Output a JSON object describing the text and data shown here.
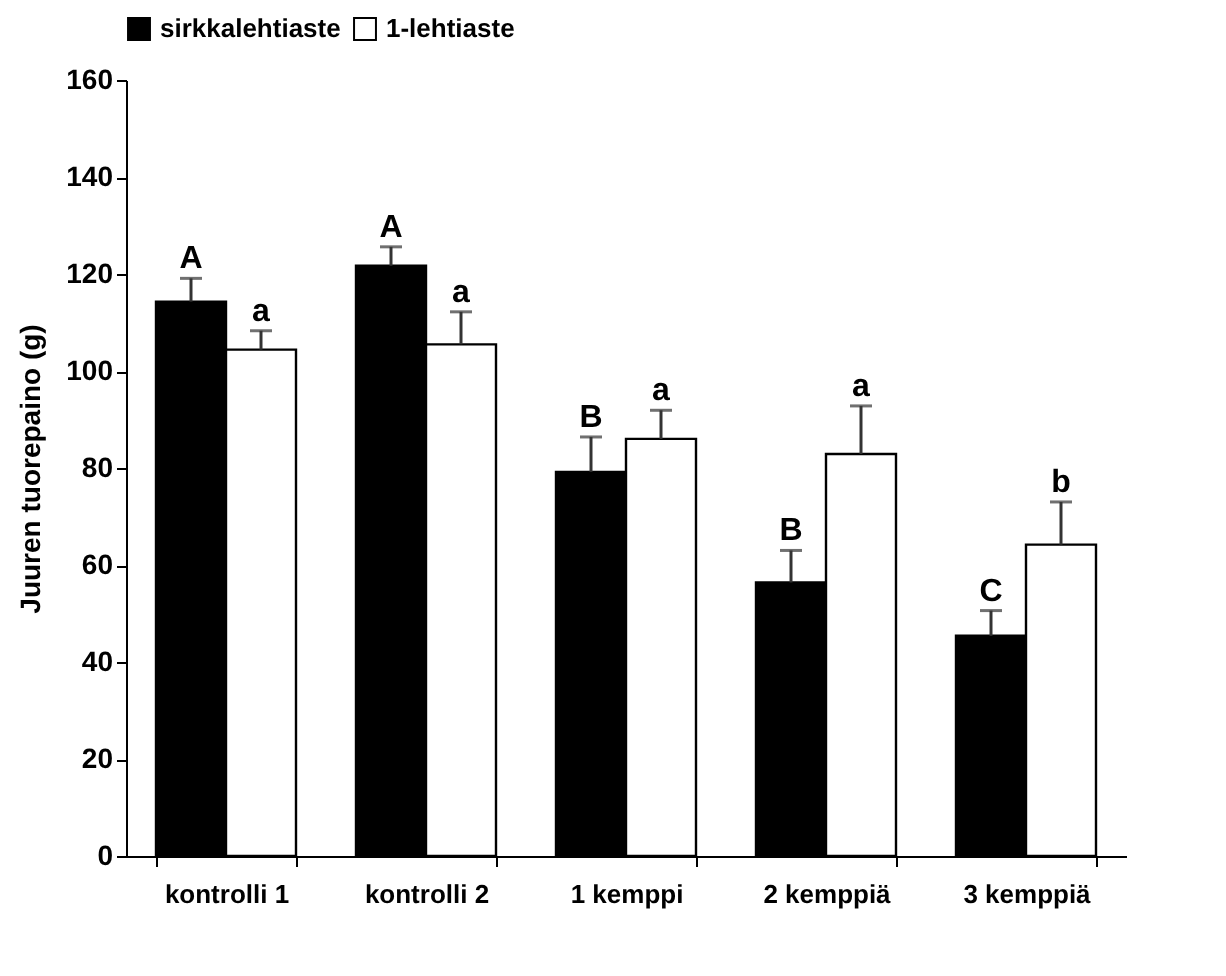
{
  "chart_data": {
    "type": "bar",
    "ylabel": "Juuren tuorepaino (g)",
    "categories": [
      "kontrolli 1",
      "kontrolli 2",
      "1 kemppi",
      "2 kemppiä",
      "3 kemppiä"
    ],
    "series": [
      {
        "name": "sirkkalehtiaste",
        "color": "#000000",
        "values": [
          114.3,
          121.7,
          79.2,
          56.4,
          45.4
        ],
        "errors": [
          [
            114.3,
            119.1
          ],
          [
            121.7,
            125.6
          ],
          [
            79.2,
            86.4
          ],
          [
            56.4,
            63.0
          ],
          [
            45.4,
            50.6
          ]
        ],
        "value_labels": [
          "A",
          "A",
          "B",
          "B",
          "C"
        ]
      },
      {
        "name": "1-lehtiaste",
        "color": "#ffffff",
        "values": [
          104.4,
          105.5,
          86.0,
          82.9,
          64.2
        ],
        "errors": [
          [
            104.4,
            108.3
          ],
          [
            105.5,
            112.2
          ],
          [
            86.0,
            91.9
          ],
          [
            82.9,
            92.8
          ],
          [
            64.2,
            73.0
          ]
        ],
        "value_labels": [
          "a",
          "a",
          "a",
          "a",
          "b"
        ]
      }
    ],
    "ylim": [
      0,
      160
    ],
    "yticks": [
      0,
      20,
      40,
      60,
      80,
      100,
      120,
      140,
      160
    ],
    "grid": false,
    "legend": "top"
  }
}
